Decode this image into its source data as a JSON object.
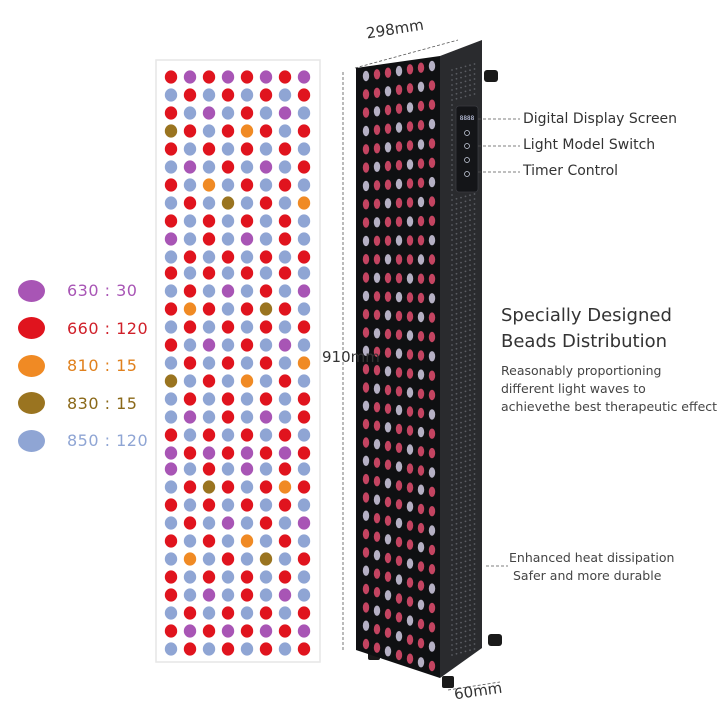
{
  "colors": {
    "630": "#a855b5",
    "660": "#e0141e",
    "810": "#f08a24",
    "830": "#9a7420",
    "850": "#8fa5d4"
  },
  "legend": [
    {
      "wavelength": "630",
      "count": "30",
      "color": "#a855b5"
    },
    {
      "wavelength": "660",
      "count": "120",
      "color": "#e0141e"
    },
    {
      "wavelength": "810",
      "count": "15",
      "color": "#f08a24"
    },
    {
      "wavelength": "830",
      "count": "15",
      "color": "#9a7420"
    },
    {
      "wavelength": "850",
      "count": "120",
      "color": "#8fa5d4"
    }
  ],
  "dimensions": {
    "width": "298mm",
    "height": "910mm",
    "depth": "60mm"
  },
  "callouts": {
    "display": "Digital Display Screen",
    "mode_switch": "Light Model Switch",
    "timer": "Timer Control"
  },
  "feature": {
    "title_line1": "Specially Designed",
    "title_line2": "Beads Distribution",
    "desc_line1": "Reasonably proportioning",
    "desc_line2": "different light waves to",
    "desc_line3": "achievethe best therapeutic effect"
  },
  "heat": {
    "line1": "Enhanced heat dissipation",
    "line2": "Safer and more durable"
  },
  "control_panel": {
    "display_readout": "8888"
  }
}
